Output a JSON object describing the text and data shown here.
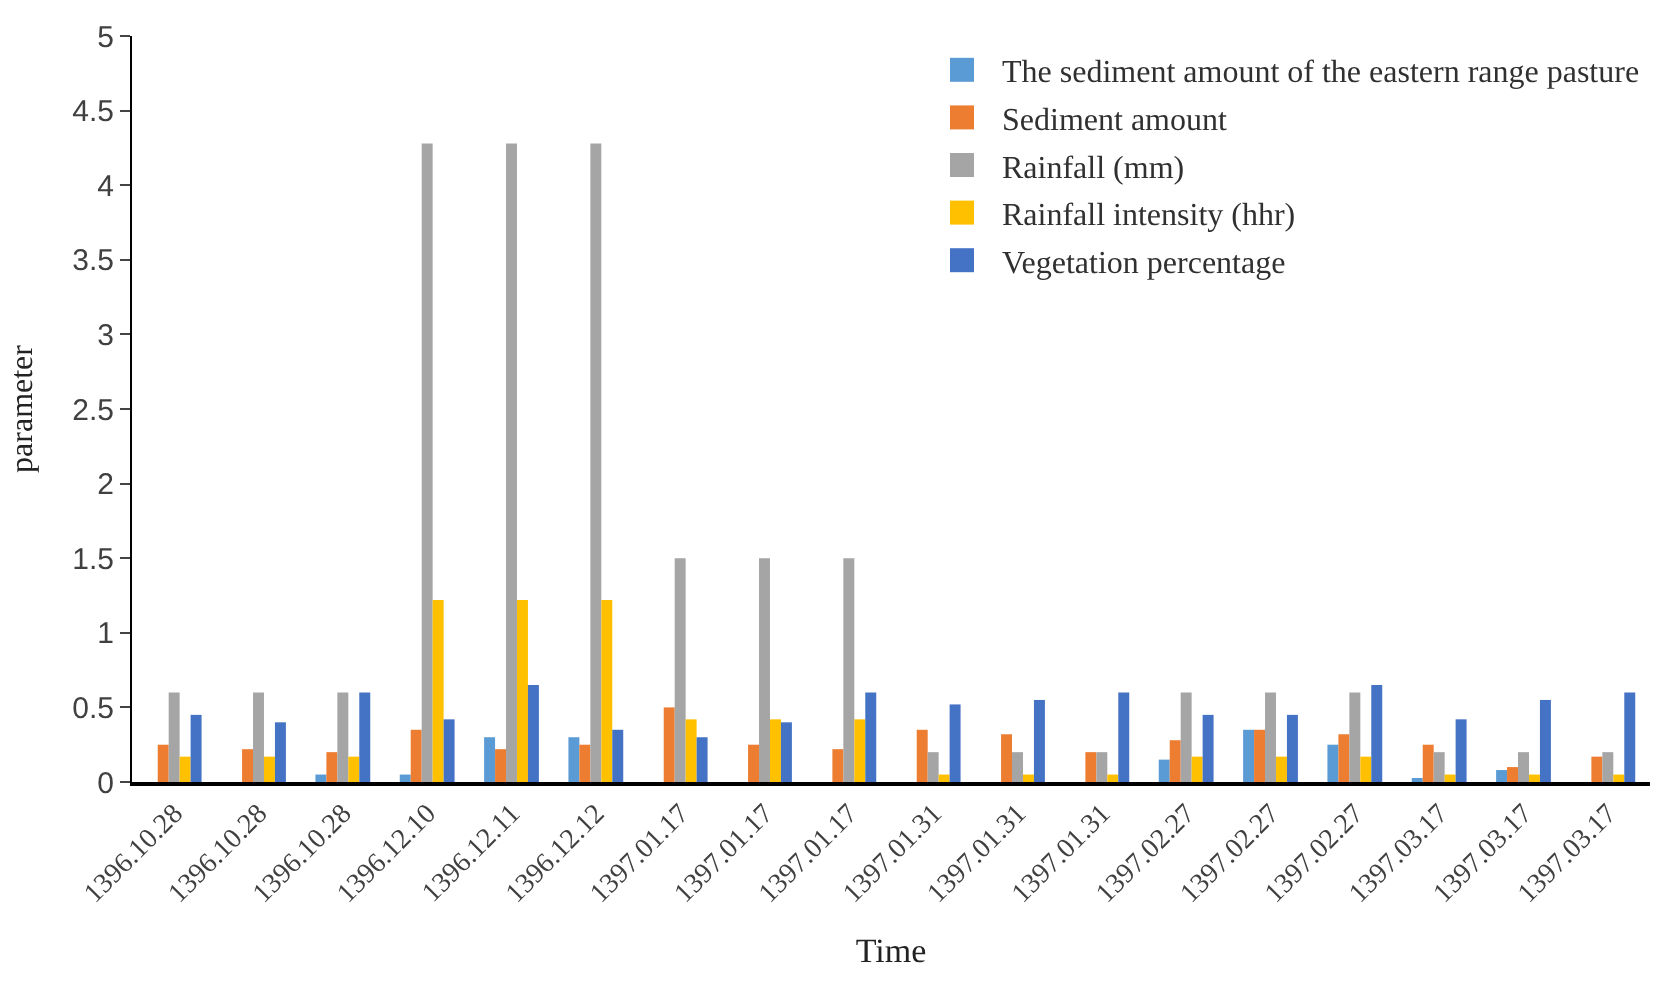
{
  "chart_data": {
    "type": "bar",
    "xlabel": "Time",
    "ylabel": "parameter",
    "categories": [
      "1396.10.28",
      "1396.10.28",
      "1396.10.28",
      "1396.12.10",
      "1396.12.11",
      "1396.12.12",
      "1397.01.17",
      "1397.01.17",
      "1397.01.17",
      "1397.01.31",
      "1397.01.31",
      "1397.01.31",
      "1397.02.27",
      "1397.02.27",
      "1397.02.27",
      "1397.03.17",
      "1397.03.17",
      "1397.03.17"
    ],
    "series": [
      {
        "name": "The sediment amount of the eastern range pasture",
        "color": "#5b9bd5",
        "values": [
          0,
          0,
          0.05,
          0.05,
          0.3,
          0.3,
          0,
          0,
          0,
          0,
          0,
          0,
          0.15,
          0.35,
          0.25,
          0.02,
          0.08,
          0
        ]
      },
      {
        "name": "Sediment amount",
        "color": "#ed7d31",
        "values": [
          0.25,
          0.22,
          0.2,
          0.35,
          0.22,
          0.25,
          0.5,
          0.25,
          0.22,
          0.35,
          0.32,
          0.2,
          0.28,
          0.35,
          0.32,
          0.25,
          0.1,
          0.17
        ]
      },
      {
        "name": "Rainfall (mm)",
        "color": "#a5a5a5",
        "values": [
          0.6,
          0.6,
          0.6,
          4.28,
          4.28,
          4.28,
          1.5,
          1.5,
          1.5,
          0.2,
          0.2,
          0.2,
          0.6,
          0.6,
          0.6,
          0.2,
          0.2,
          0.2
        ]
      },
      {
        "name": "Rainfall intensity (hhr)",
        "color": "#ffc000",
        "values": [
          0.17,
          0.17,
          0.17,
          1.22,
          1.22,
          1.22,
          0.42,
          0.42,
          0.42,
          0.05,
          0.05,
          0.05,
          0.17,
          0.17,
          0.17,
          0.05,
          0.05,
          0.05
        ]
      },
      {
        "name": "Vegetation percentage",
        "color": "#4472c4",
        "values": [
          0.45,
          0.4,
          0.6,
          0.42,
          0.65,
          0.35,
          0.3,
          0.4,
          0.6,
          0.52,
          0.55,
          0.6,
          0.45,
          0.45,
          0.65,
          0.42,
          0.55,
          0.6
        ]
      }
    ],
    "ylim": [
      0,
      5
    ],
    "yticks": [
      0,
      0.5,
      1,
      1.5,
      2,
      2.5,
      3,
      3.5,
      4,
      4.5,
      5
    ],
    "legend": "top right"
  }
}
